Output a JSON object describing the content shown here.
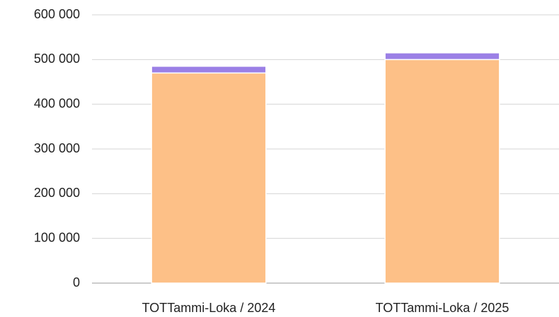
{
  "chart_data": {
    "type": "stacked_bar",
    "categories": [
      "TOTTammi-Loka / 2024",
      "TOTTammi-Loka / 2025"
    ],
    "series": [
      {
        "color": "#fdc087",
        "values": [
          470000,
          500000
        ]
      },
      {
        "color": "#9b80e6",
        "values": [
          15000,
          15000
        ]
      }
    ],
    "ylim": [
      0,
      600000
    ],
    "yticks": [
      {
        "value": 0,
        "label": "0"
      },
      {
        "value": 100000,
        "label": "100 000"
      },
      {
        "value": 200000,
        "label": "200 000"
      },
      {
        "value": 300000,
        "label": "300 000"
      },
      {
        "value": 400000,
        "label": "400 000"
      },
      {
        "value": 500000,
        "label": "500 000"
      },
      {
        "value": 600000,
        "label": "600 000"
      }
    ],
    "grid": true
  }
}
